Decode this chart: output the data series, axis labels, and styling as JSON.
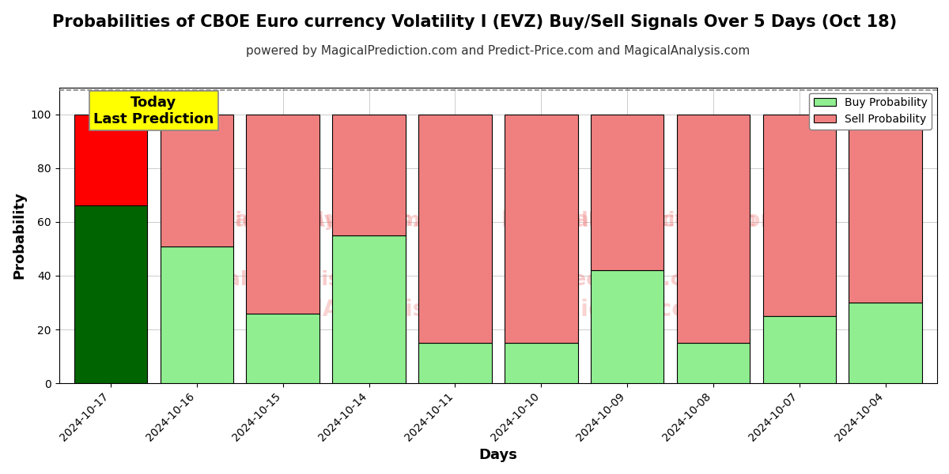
{
  "title": "Probabilities of CBOE Euro currency Volatility I (EVZ) Buy/Sell Signals Over 5 Days (Oct 18)",
  "subtitle": "powered by MagicalPrediction.com and Predict-Price.com and MagicalAnalysis.com",
  "xlabel": "Days",
  "ylabel": "Probability",
  "days": [
    "2024-10-17",
    "2024-10-16",
    "2024-10-15",
    "2024-10-14",
    "2024-10-11",
    "2024-10-10",
    "2024-10-09",
    "2024-10-08",
    "2024-10-07",
    "2024-10-04"
  ],
  "buy_values": [
    66,
    51,
    26,
    55,
    15,
    15,
    42,
    15,
    25,
    30
  ],
  "sell_values": [
    34,
    49,
    74,
    45,
    85,
    85,
    58,
    85,
    75,
    70
  ],
  "today_buy_color": "#006400",
  "today_sell_color": "#FF0000",
  "buy_color": "#90EE90",
  "sell_color": "#F08080",
  "bar_edge_color": "#000000",
  "ylim": [
    0,
    110
  ],
  "yticks": [
    0,
    20,
    40,
    60,
    80,
    100
  ],
  "dashed_line_y": 109,
  "today_annotation": "Today\nLast Prediction",
  "legend_buy_label": "Buy Probability",
  "legend_sell_label": "Sell Probability",
  "background_color": "#ffffff",
  "grid_color": "#cccccc",
  "title_fontsize": 15,
  "subtitle_fontsize": 11,
  "axis_label_fontsize": 13,
  "tick_fontsize": 10,
  "bar_width": 0.85
}
